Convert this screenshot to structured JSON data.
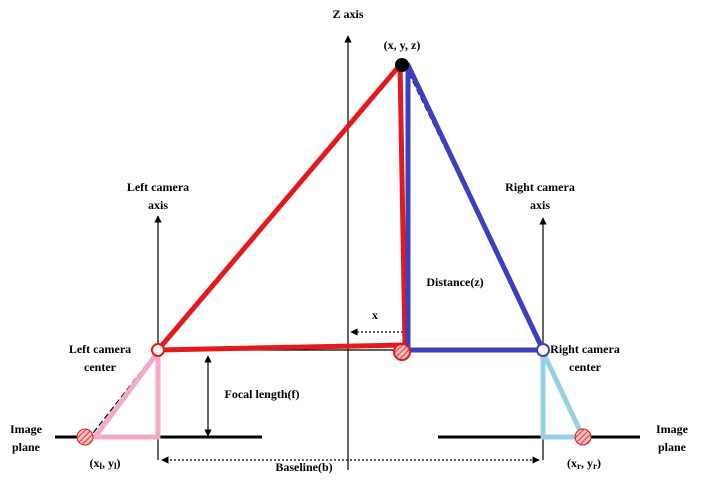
{
  "z_axis": "Z axis",
  "point": "(x, y, z)",
  "left_axis": [
    "Left camera",
    "axis"
  ],
  "right_axis": [
    "Right camera",
    "axis"
  ],
  "distance": "Distance(z)",
  "x_offset": "x",
  "left_center": [
    "Left camera",
    "center"
  ],
  "right_center": [
    "Right camera",
    "center"
  ],
  "focal_length": "Focal length(f)",
  "left_image_plane": [
    "Image",
    "plane"
  ],
  "right_image_plane": [
    "Image",
    "plane"
  ],
  "left_point": [
    "(x",
    "l",
    ", y",
    "l",
    ")"
  ],
  "right_point": [
    "(x",
    "r",
    ", y",
    "r",
    ")"
  ],
  "baseline": "Baseline(b)"
}
